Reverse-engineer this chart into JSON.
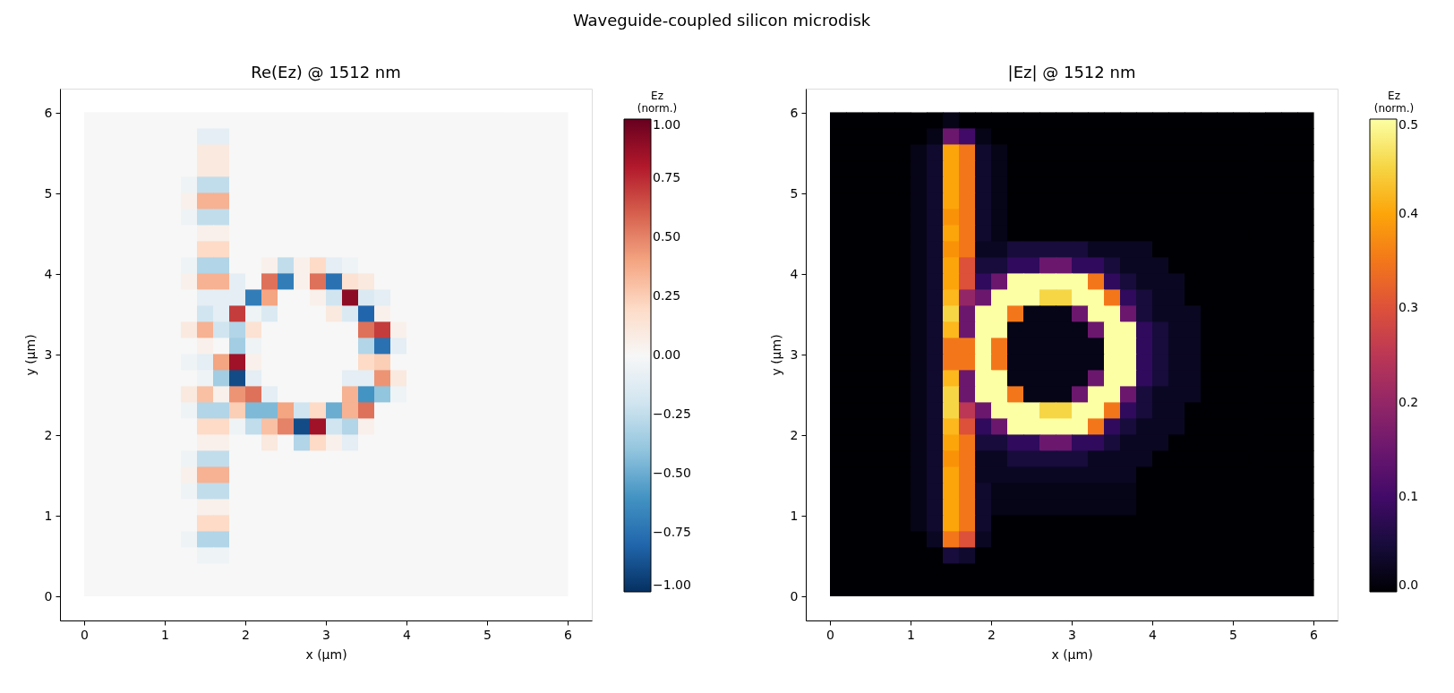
{
  "chart_data": [
    {
      "type": "heatmap",
      "title": "Re(Ez)   @ 1512 nm",
      "annotations": [
        "Waveguide-coupled silicon microdisk"
      ],
      "xlabel": "x (µm)",
      "ylabel": "y (µm)",
      "clabel": "Ez\n(norm.)",
      "xlim": [
        -0.3,
        6.3
      ],
      "ylim": [
        -0.3,
        6.3
      ],
      "xticks": [
        0,
        1,
        2,
        3,
        4,
        5,
        6
      ],
      "yticks": [
        0,
        1,
        2,
        3,
        4,
        5,
        6
      ],
      "clim": [
        -1,
        1
      ],
      "cticks": [
        {
          "value": -1,
          "label": "−1.00"
        },
        {
          "value": -0.75,
          "label": "−0.75"
        },
        {
          "value": -0.5,
          "label": "−0.50"
        },
        {
          "value": -0.25,
          "label": "−0.25"
        },
        {
          "value": 0,
          "label": "0.00"
        },
        0.25,
        {
          "value": 0.5,
          "label": "0.50"
        },
        0.75,
        {
          "value": 1,
          "label": "1.00"
        }
      ],
      "x": [
        0.1,
        0.3,
        0.5,
        0.7,
        0.9,
        1.1,
        1.3,
        1.5,
        1.7,
        1.9,
        2.1,
        2.3,
        2.5,
        2.7,
        2.9,
        3.1,
        3.3,
        3.5,
        3.7,
        3.9,
        4.1,
        4.3,
        4.5,
        4.7,
        4.9,
        5.1,
        5.3,
        5.5,
        5.7,
        5.9
      ],
      "y": [
        5.9,
        5.7,
        5.5,
        5.3,
        5.1,
        4.9,
        4.7,
        4.5,
        4.3,
        4.1,
        3.9,
        3.7,
        3.5,
        3.3,
        3.1,
        2.9,
        2.7,
        2.5,
        2.3,
        2.1,
        1.9,
        1.7,
        1.5,
        1.3,
        1.1,
        0.9,
        0.7,
        0.5,
        0.3,
        0.1
      ],
      "cells": [
        [
          0,
          0,
          0,
          0,
          0,
          0,
          0,
          0,
          0,
          0,
          0,
          0,
          0,
          0,
          0,
          0,
          0,
          0,
          0,
          0,
          0,
          0,
          0,
          0,
          0,
          0,
          0,
          0,
          0,
          0
        ],
        [
          0,
          0,
          0,
          0,
          0,
          0,
          0,
          -0.1,
          -0.1,
          0,
          0,
          0,
          0,
          0,
          0,
          0,
          0,
          0,
          0,
          0,
          0,
          0,
          0,
          0,
          0,
          0,
          0,
          0,
          0,
          0
        ],
        [
          0,
          0,
          0,
          0,
          0,
          0,
          0,
          0.1,
          0.1,
          0,
          0,
          0,
          0,
          0,
          0,
          0,
          0,
          0,
          0,
          0,
          0,
          0,
          0,
          0,
          0,
          0,
          0,
          0,
          0,
          0
        ],
        [
          0,
          0,
          0,
          0,
          0,
          0,
          0,
          0.1,
          0.1,
          0,
          0,
          0,
          0,
          0,
          0,
          0,
          0,
          0,
          0,
          0,
          0,
          0,
          0,
          0,
          0,
          0,
          0,
          0,
          0,
          0
        ],
        [
          0,
          0,
          0,
          0,
          0,
          0,
          -0.05,
          -0.25,
          -0.25,
          0,
          0,
          0,
          0,
          0,
          0,
          0,
          0,
          0,
          0,
          0,
          0,
          0,
          0,
          0,
          0,
          0,
          0,
          0,
          0,
          0
        ],
        [
          0,
          0,
          0,
          0,
          0,
          0,
          0.05,
          0.35,
          0.35,
          0,
          0,
          0,
          0,
          0,
          0,
          0,
          0,
          0,
          0,
          0,
          0,
          0,
          0,
          0,
          0,
          0,
          0,
          0,
          0,
          0
        ],
        [
          0,
          0,
          0,
          0,
          0,
          0,
          -0.05,
          -0.25,
          -0.25,
          0,
          0,
          0,
          0,
          0,
          0,
          0,
          0,
          0,
          0,
          0,
          0,
          0,
          0,
          0,
          0,
          0,
          0,
          0,
          0,
          0
        ],
        [
          0,
          0,
          0,
          0,
          0,
          0,
          0,
          0.05,
          0.05,
          0,
          0,
          0,
          0,
          0,
          0,
          0,
          0,
          0,
          0,
          0,
          0,
          0,
          0,
          0,
          0,
          0,
          0,
          0,
          0,
          0
        ],
        [
          0,
          0,
          0,
          0,
          0,
          0,
          0,
          0.2,
          0.2,
          0,
          0,
          0,
          0,
          0,
          0,
          0,
          0,
          0,
          0,
          0,
          0,
          0,
          0,
          0,
          0,
          0,
          0,
          0,
          0,
          0
        ],
        [
          0,
          0,
          0,
          0,
          0,
          0,
          -0.05,
          -0.3,
          -0.3,
          0,
          0,
          0.05,
          -0.25,
          0.05,
          0.2,
          -0.1,
          -0.05,
          0,
          0,
          0,
          0,
          0,
          0,
          0,
          0,
          0,
          0,
          0,
          0,
          0
        ],
        [
          0,
          0,
          0,
          0,
          0,
          0,
          0.05,
          0.35,
          0.35,
          -0.1,
          0,
          0.55,
          -0.7,
          0.05,
          0.55,
          -0.75,
          0.15,
          0.1,
          0,
          0,
          0,
          0,
          0,
          0,
          0,
          0,
          0,
          0,
          0,
          0
        ],
        [
          0,
          0,
          0,
          0,
          0,
          0,
          0,
          -0.1,
          -0.1,
          -0.1,
          -0.7,
          0.4,
          0,
          0,
          0.05,
          -0.2,
          0.9,
          -0.15,
          -0.1,
          0,
          0,
          0,
          0,
          0,
          0,
          0,
          0,
          0,
          0,
          0
        ],
        [
          0,
          0,
          0,
          0,
          0,
          0,
          0,
          -0.2,
          -0.1,
          0.7,
          -0.05,
          -0.15,
          0,
          0,
          0,
          0.1,
          -0.15,
          -0.8,
          0.05,
          0,
          0,
          0,
          0,
          0,
          0,
          0,
          0,
          0,
          0,
          0
        ],
        [
          0,
          0,
          0,
          0,
          0,
          0,
          0.1,
          0.35,
          -0.2,
          -0.3,
          0.15,
          0,
          0,
          0,
          0,
          0,
          0,
          0.55,
          0.7,
          0.05,
          0,
          0,
          0,
          0,
          0,
          0,
          0,
          0,
          0,
          0
        ],
        [
          0,
          0,
          0,
          0,
          0,
          0,
          0,
          0.05,
          0,
          -0.35,
          -0.05,
          0,
          0,
          0,
          0,
          0,
          0,
          -0.3,
          -0.75,
          -0.1,
          0,
          0,
          0,
          0,
          0,
          0,
          0,
          0,
          0,
          0
        ],
        [
          0,
          0,
          0,
          0,
          0,
          0,
          -0.05,
          -0.1,
          0.4,
          0.85,
          0.05,
          0,
          0,
          0,
          0,
          0,
          0,
          0.2,
          0.25,
          0,
          0,
          0,
          0,
          0,
          0,
          0,
          0,
          0,
          0,
          0
        ],
        [
          0,
          0,
          0,
          0,
          0,
          0,
          0,
          -0.05,
          -0.35,
          -0.9,
          -0.1,
          0,
          0,
          0,
          0,
          0,
          -0.1,
          -0.1,
          0.45,
          0.1,
          0,
          0,
          0,
          0,
          0,
          0,
          0,
          0,
          0,
          0
        ],
        [
          0,
          0,
          0,
          0,
          0,
          0,
          0.1,
          0.3,
          0.05,
          0.45,
          0.55,
          -0.1,
          0,
          0,
          0,
          0,
          0.35,
          -0.6,
          -0.4,
          -0.05,
          0,
          0,
          0,
          0,
          0,
          0,
          0,
          0,
          0,
          0
        ],
        [
          0,
          0,
          0,
          0,
          0,
          0,
          -0.05,
          -0.3,
          -0.3,
          0.25,
          -0.45,
          -0.45,
          0.4,
          -0.2,
          0.2,
          -0.5,
          0.35,
          0.55,
          0,
          0,
          0,
          0,
          0,
          0,
          0,
          0,
          0,
          0,
          0,
          0
        ],
        [
          0,
          0,
          0,
          0,
          0,
          0,
          0,
          0.2,
          0.2,
          -0.05,
          -0.25,
          0.3,
          0.5,
          -0.9,
          0.85,
          -0.2,
          -0.3,
          0.05,
          0,
          0,
          0,
          0,
          0,
          0,
          0,
          0,
          0,
          0,
          0,
          0
        ],
        [
          0,
          0,
          0,
          0,
          0,
          0,
          0,
          0.05,
          0.05,
          0,
          0,
          0.1,
          0,
          -0.3,
          0.2,
          0.05,
          -0.1,
          0,
          0,
          0,
          0,
          0,
          0,
          0,
          0,
          0,
          0,
          0,
          0,
          0
        ],
        [
          0,
          0,
          0,
          0,
          0,
          0,
          -0.05,
          -0.25,
          -0.25,
          0,
          0,
          0,
          0,
          0,
          0,
          0,
          0,
          0,
          0,
          0,
          0,
          0,
          0,
          0,
          0,
          0,
          0,
          0,
          0,
          0
        ],
        [
          0,
          0,
          0,
          0,
          0,
          0,
          0.05,
          0.35,
          0.35,
          0,
          0,
          0,
          0,
          0,
          0,
          0,
          0,
          0,
          0,
          0,
          0,
          0,
          0,
          0,
          0,
          0,
          0,
          0,
          0,
          0
        ],
        [
          0,
          0,
          0,
          0,
          0,
          0,
          -0.05,
          -0.25,
          -0.25,
          0,
          0,
          0,
          0,
          0,
          0,
          0,
          0,
          0,
          0,
          0,
          0,
          0,
          0,
          0,
          0,
          0,
          0,
          0,
          0,
          0
        ],
        [
          0,
          0,
          0,
          0,
          0,
          0,
          0,
          0.05,
          0.05,
          0,
          0,
          0,
          0,
          0,
          0,
          0,
          0,
          0,
          0,
          0,
          0,
          0,
          0,
          0,
          0,
          0,
          0,
          0,
          0,
          0
        ],
        [
          0,
          0,
          0,
          0,
          0,
          0,
          0,
          0.2,
          0.2,
          0,
          0,
          0,
          0,
          0,
          0,
          0,
          0,
          0,
          0,
          0,
          0,
          0,
          0,
          0,
          0,
          0,
          0,
          0,
          0,
          0
        ],
        [
          0,
          0,
          0,
          0,
          0,
          0,
          -0.05,
          -0.3,
          -0.3,
          0,
          0,
          0,
          0,
          0,
          0,
          0,
          0,
          0,
          0,
          0,
          0,
          0,
          0,
          0,
          0,
          0,
          0,
          0,
          0,
          0
        ],
        [
          0,
          0,
          0,
          0,
          0,
          0,
          0,
          -0.05,
          -0.05,
          0,
          0,
          0,
          0,
          0,
          0,
          0,
          0,
          0,
          0,
          0,
          0,
          0,
          0,
          0,
          0,
          0,
          0,
          0,
          0,
          0
        ],
        [
          0,
          0,
          0,
          0,
          0,
          0,
          0,
          0,
          0,
          0,
          0,
          0,
          0,
          0,
          0,
          0,
          0,
          0,
          0,
          0,
          0,
          0,
          0,
          0,
          0,
          0,
          0,
          0,
          0,
          0
        ],
        [
          0,
          0,
          0,
          0,
          0,
          0,
          0,
          0,
          0,
          0,
          0,
          0,
          0,
          0,
          0,
          0,
          0,
          0,
          0,
          0,
          0,
          0,
          0,
          0,
          0,
          0,
          0,
          0,
          0,
          0
        ]
      ]
    },
    {
      "type": "heatmap",
      "title": "|Ez|   @ 1512 nm",
      "xlabel": "x (µm)",
      "ylabel": "y (µm)",
      "clabel": "Ez\n(norm.)",
      "xlim": [
        -0.3,
        6.3
      ],
      "ylim": [
        -0.3,
        6.3
      ],
      "xticks": [
        0,
        1,
        2,
        3,
        4,
        5,
        6
      ],
      "yticks": [
        0,
        1,
        2,
        3,
        4,
        5,
        6
      ],
      "clim": [
        0,
        0.5
      ],
      "cticks": [
        {
          "value": 0,
          "label": "0.0"
        },
        0.1,
        0.2,
        0.3,
        0.4,
        0.5
      ],
      "x": [
        0.1,
        0.3,
        0.5,
        0.7,
        0.9,
        1.1,
        1.3,
        1.5,
        1.7,
        1.9,
        2.1,
        2.3,
        2.5,
        2.7,
        2.9,
        3.1,
        3.3,
        3.5,
        3.7,
        3.9,
        4.1,
        4.3,
        4.5,
        4.7,
        4.9,
        5.1,
        5.3,
        5.5,
        5.7,
        5.9
      ],
      "y": [
        5.9,
        5.7,
        5.5,
        5.3,
        5.1,
        4.9,
        4.7,
        4.5,
        4.3,
        4.1,
        3.9,
        3.7,
        3.5,
        3.3,
        3.1,
        2.9,
        2.7,
        2.5,
        2.3,
        2.1,
        1.9,
        1.7,
        1.5,
        1.3,
        1.1,
        0.9,
        0.7,
        0.5,
        0.3,
        0.1
      ],
      "cells": [
        [
          0,
          0,
          0,
          0,
          0,
          0,
          0,
          0.02,
          0,
          0,
          0,
          0,
          0,
          0,
          0,
          0,
          0,
          0,
          0,
          0,
          0,
          0,
          0,
          0,
          0,
          0,
          0,
          0,
          0,
          0
        ],
        [
          0,
          0,
          0,
          0,
          0,
          0,
          0.02,
          0.15,
          0.1,
          0.02,
          0,
          0,
          0,
          0,
          0,
          0,
          0,
          0,
          0,
          0,
          0,
          0,
          0,
          0,
          0,
          0,
          0,
          0,
          0,
          0
        ],
        [
          0,
          0,
          0,
          0,
          0,
          0.02,
          0.04,
          0.4,
          0.35,
          0.04,
          0.02,
          0,
          0,
          0,
          0,
          0,
          0,
          0,
          0,
          0,
          0,
          0,
          0,
          0,
          0,
          0,
          0,
          0,
          0,
          0
        ],
        [
          0,
          0,
          0,
          0,
          0,
          0.02,
          0.04,
          0.4,
          0.35,
          0.04,
          0.02,
          0,
          0,
          0,
          0,
          0,
          0,
          0,
          0,
          0,
          0,
          0,
          0,
          0,
          0,
          0,
          0,
          0,
          0,
          0
        ],
        [
          0,
          0,
          0,
          0,
          0,
          0.02,
          0.04,
          0.4,
          0.35,
          0.04,
          0.02,
          0,
          0,
          0,
          0,
          0,
          0,
          0,
          0,
          0,
          0,
          0,
          0,
          0,
          0,
          0,
          0,
          0,
          0,
          0
        ],
        [
          0,
          0,
          0,
          0,
          0,
          0.02,
          0.04,
          0.4,
          0.35,
          0.04,
          0.02,
          0,
          0,
          0,
          0,
          0,
          0,
          0,
          0,
          0,
          0,
          0,
          0,
          0,
          0,
          0,
          0,
          0,
          0,
          0
        ],
        [
          0,
          0,
          0,
          0,
          0,
          0.02,
          0.04,
          0.38,
          0.35,
          0.04,
          0.02,
          0,
          0,
          0,
          0,
          0,
          0,
          0,
          0,
          0,
          0,
          0,
          0,
          0,
          0,
          0,
          0,
          0,
          0,
          0
        ],
        [
          0,
          0,
          0,
          0,
          0,
          0.02,
          0.04,
          0.4,
          0.35,
          0.04,
          0.02,
          0,
          0,
          0,
          0,
          0,
          0,
          0,
          0,
          0,
          0,
          0,
          0,
          0,
          0,
          0,
          0,
          0,
          0,
          0
        ],
        [
          0,
          0,
          0,
          0,
          0,
          0.02,
          0.04,
          0.38,
          0.35,
          0.03,
          0.03,
          0.05,
          0.05,
          0.05,
          0.05,
          0.05,
          0.03,
          0.03,
          0.03,
          0.03,
          0,
          0,
          0,
          0,
          0,
          0,
          0,
          0,
          0,
          0
        ],
        [
          0,
          0,
          0,
          0,
          0,
          0.02,
          0.04,
          0.4,
          0.3,
          0.05,
          0.05,
          0.08,
          0.08,
          0.15,
          0.15,
          0.08,
          0.08,
          0.05,
          0.03,
          0.03,
          0.03,
          0,
          0,
          0,
          0,
          0,
          0,
          0,
          0,
          0
        ],
        [
          0,
          0,
          0,
          0,
          0,
          0.02,
          0.04,
          0.4,
          0.3,
          0.08,
          0.15,
          0.5,
          0.5,
          0.5,
          0.5,
          0.5,
          0.35,
          0.08,
          0.05,
          0.03,
          0.03,
          0.03,
          0,
          0,
          0,
          0,
          0,
          0,
          0,
          0
        ],
        [
          0,
          0,
          0,
          0,
          0,
          0.02,
          0.04,
          0.42,
          0.2,
          0.15,
          0.5,
          0.5,
          0.5,
          0.45,
          0.45,
          0.5,
          0.5,
          0.35,
          0.08,
          0.05,
          0.03,
          0.03,
          0,
          0,
          0,
          0,
          0,
          0,
          0,
          0
        ],
        [
          0,
          0,
          0,
          0,
          0,
          0.02,
          0.04,
          0.45,
          0.15,
          0.5,
          0.5,
          0.35,
          0.02,
          0.02,
          0.02,
          0.15,
          0.5,
          0.5,
          0.15,
          0.05,
          0.03,
          0.03,
          0.03,
          0,
          0,
          0,
          0,
          0,
          0,
          0
        ],
        [
          0,
          0,
          0,
          0,
          0,
          0.02,
          0.04,
          0.42,
          0.15,
          0.5,
          0.5,
          0.02,
          0.02,
          0.02,
          0.02,
          0.02,
          0.15,
          0.5,
          0.5,
          0.08,
          0.05,
          0.03,
          0.03,
          0,
          0,
          0,
          0,
          0,
          0,
          0
        ],
        [
          0,
          0,
          0,
          0,
          0,
          0.02,
          0.04,
          0.35,
          0.35,
          0.5,
          0.35,
          0.02,
          0.02,
          0.02,
          0.02,
          0.02,
          0.02,
          0.5,
          0.5,
          0.08,
          0.05,
          0.03,
          0.03,
          0,
          0,
          0,
          0,
          0,
          0,
          0
        ],
        [
          0,
          0,
          0,
          0,
          0,
          0.02,
          0.04,
          0.35,
          0.35,
          0.5,
          0.35,
          0.02,
          0.02,
          0.02,
          0.02,
          0.02,
          0.02,
          0.5,
          0.5,
          0.08,
          0.05,
          0.03,
          0.03,
          0,
          0,
          0,
          0,
          0,
          0,
          0
        ],
        [
          0,
          0,
          0,
          0,
          0,
          0.02,
          0.04,
          0.42,
          0.15,
          0.5,
          0.5,
          0.02,
          0.02,
          0.02,
          0.02,
          0.02,
          0.15,
          0.5,
          0.5,
          0.08,
          0.05,
          0.03,
          0.03,
          0,
          0,
          0,
          0,
          0,
          0,
          0
        ],
        [
          0,
          0,
          0,
          0,
          0,
          0.02,
          0.04,
          0.45,
          0.15,
          0.5,
          0.5,
          0.35,
          0.02,
          0.02,
          0.02,
          0.15,
          0.5,
          0.5,
          0.15,
          0.05,
          0.03,
          0.03,
          0.03,
          0,
          0,
          0,
          0,
          0,
          0,
          0
        ],
        [
          0,
          0,
          0,
          0,
          0,
          0.02,
          0.04,
          0.45,
          0.25,
          0.15,
          0.5,
          0.5,
          0.5,
          0.45,
          0.45,
          0.5,
          0.5,
          0.35,
          0.08,
          0.05,
          0.03,
          0.03,
          0,
          0,
          0,
          0,
          0,
          0,
          0,
          0
        ],
        [
          0,
          0,
          0,
          0,
          0,
          0.02,
          0.04,
          0.42,
          0.3,
          0.08,
          0.15,
          0.5,
          0.5,
          0.5,
          0.5,
          0.5,
          0.35,
          0.08,
          0.05,
          0.03,
          0.03,
          0.03,
          0,
          0,
          0,
          0,
          0,
          0,
          0,
          0
        ],
        [
          0,
          0,
          0,
          0,
          0,
          0.02,
          0.04,
          0.4,
          0.35,
          0.05,
          0.05,
          0.08,
          0.08,
          0.15,
          0.15,
          0.08,
          0.08,
          0.05,
          0.03,
          0.03,
          0.03,
          0,
          0,
          0,
          0,
          0,
          0,
          0,
          0,
          0
        ],
        [
          0,
          0,
          0,
          0,
          0,
          0.02,
          0.04,
          0.38,
          0.35,
          0.03,
          0.03,
          0.05,
          0.05,
          0.05,
          0.05,
          0.05,
          0.03,
          0.03,
          0.03,
          0.03,
          0,
          0,
          0,
          0,
          0,
          0,
          0,
          0,
          0,
          0
        ],
        [
          0,
          0,
          0,
          0,
          0,
          0.02,
          0.04,
          0.4,
          0.35,
          0.03,
          0.03,
          0.03,
          0.03,
          0.03,
          0.03,
          0.03,
          0.03,
          0.03,
          0.03,
          0,
          0,
          0,
          0,
          0,
          0,
          0,
          0,
          0,
          0,
          0
        ],
        [
          0,
          0,
          0,
          0,
          0,
          0.02,
          0.04,
          0.4,
          0.35,
          0.04,
          0.02,
          0.02,
          0.02,
          0.02,
          0.02,
          0.02,
          0.02,
          0.02,
          0.02,
          0,
          0,
          0,
          0,
          0,
          0,
          0,
          0,
          0,
          0,
          0
        ],
        [
          0,
          0,
          0,
          0,
          0,
          0.02,
          0.04,
          0.4,
          0.35,
          0.04,
          0.02,
          0.02,
          0.02,
          0.02,
          0.02,
          0.02,
          0.02,
          0.02,
          0.02,
          0,
          0,
          0,
          0,
          0,
          0,
          0,
          0,
          0,
          0,
          0
        ],
        [
          0,
          0,
          0,
          0,
          0,
          0.02,
          0.04,
          0.4,
          0.35,
          0.04,
          0,
          0,
          0,
          0,
          0,
          0,
          0,
          0,
          0,
          0,
          0,
          0,
          0,
          0,
          0,
          0,
          0,
          0,
          0,
          0
        ],
        [
          0,
          0,
          0,
          0,
          0,
          0,
          0.03,
          0.35,
          0.3,
          0.03,
          0,
          0,
          0,
          0,
          0,
          0,
          0,
          0,
          0,
          0,
          0,
          0,
          0,
          0,
          0,
          0,
          0,
          0,
          0,
          0
        ],
        [
          0,
          0,
          0,
          0,
          0,
          0,
          0,
          0.05,
          0.04,
          0,
          0,
          0,
          0,
          0,
          0,
          0,
          0,
          0,
          0,
          0,
          0,
          0,
          0,
          0,
          0,
          0,
          0,
          0,
          0,
          0
        ],
        [
          0,
          0,
          0,
          0,
          0,
          0,
          0,
          0,
          0,
          0,
          0,
          0,
          0,
          0,
          0,
          0,
          0,
          0,
          0,
          0,
          0,
          0,
          0,
          0,
          0,
          0,
          0,
          0,
          0,
          0
        ],
        [
          0,
          0,
          0,
          0,
          0,
          0,
          0,
          0,
          0,
          0,
          0,
          0,
          0,
          0,
          0,
          0,
          0,
          0,
          0,
          0,
          0,
          0,
          0,
          0,
          0,
          0,
          0,
          0,
          0,
          0
        ]
      ]
    }
  ]
}
